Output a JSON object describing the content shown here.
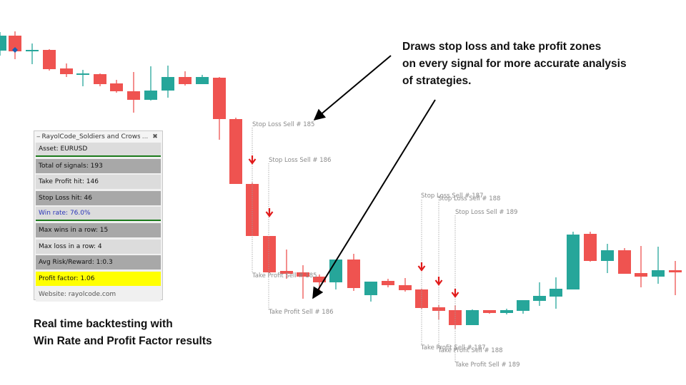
{
  "colors": {
    "bull": "#26a69a",
    "bear": "#ef5350",
    "wick_bull": "#26a69a",
    "wick_bear": "#ef5350",
    "arrow": "#e11a1a",
    "zone_line": "#9e9e9e",
    "pointer": "#000000"
  },
  "annotations": {
    "top_lines": [
      "Draws stop loss and take profit zones",
      "on every signal for more accurate analysis",
      "of strategies."
    ],
    "bottom_lines": [
      "Real time backtesting with",
      "Win Rate and Profit Factor results"
    ]
  },
  "panel": {
    "title": "RayolCode_Soldiers and Crows",
    "grip_icon": "drag-handle-icon",
    "minimize_icon": "minimize-icon",
    "close_icon": "close-icon",
    "minimize_glyph": "...",
    "close_glyph": "✖",
    "rows": {
      "asset": "Asset: EURUSD",
      "total_signals": "Total of signals: 193",
      "take_profit_hit": "Take Profit hit: 146",
      "stop_loss_hit": "Stop Loss hit: 46",
      "win_rate": "Win rate: 76.0%",
      "max_wins": "Max wins in a row: 15",
      "max_loss": "Max loss in a row: 4",
      "avg_rr": "Avg Risk/Reward: 1:0.3",
      "profit_factor": "Profit factor: 1.06",
      "website": "Website: rayolcode.com"
    }
  },
  "zone_labels": {
    "sl_185": "Stop Loss Sell # 185",
    "sl_186": "Stop Loss Sell # 186",
    "sl_187": "Stop Loss Sell # 187",
    "sl_188": "Stop Loss Sell # 188",
    "sl_189": "Stop Loss Sell # 189",
    "tp_185": "Take Profit Sell # 185",
    "tp_186": "Take Profit Sell # 186",
    "tp_187": "Take Profit Sell # 187",
    "tp_188": "Take Profit Sell # 188",
    "tp_189": "Take Profit Sell # 189"
  }
}
